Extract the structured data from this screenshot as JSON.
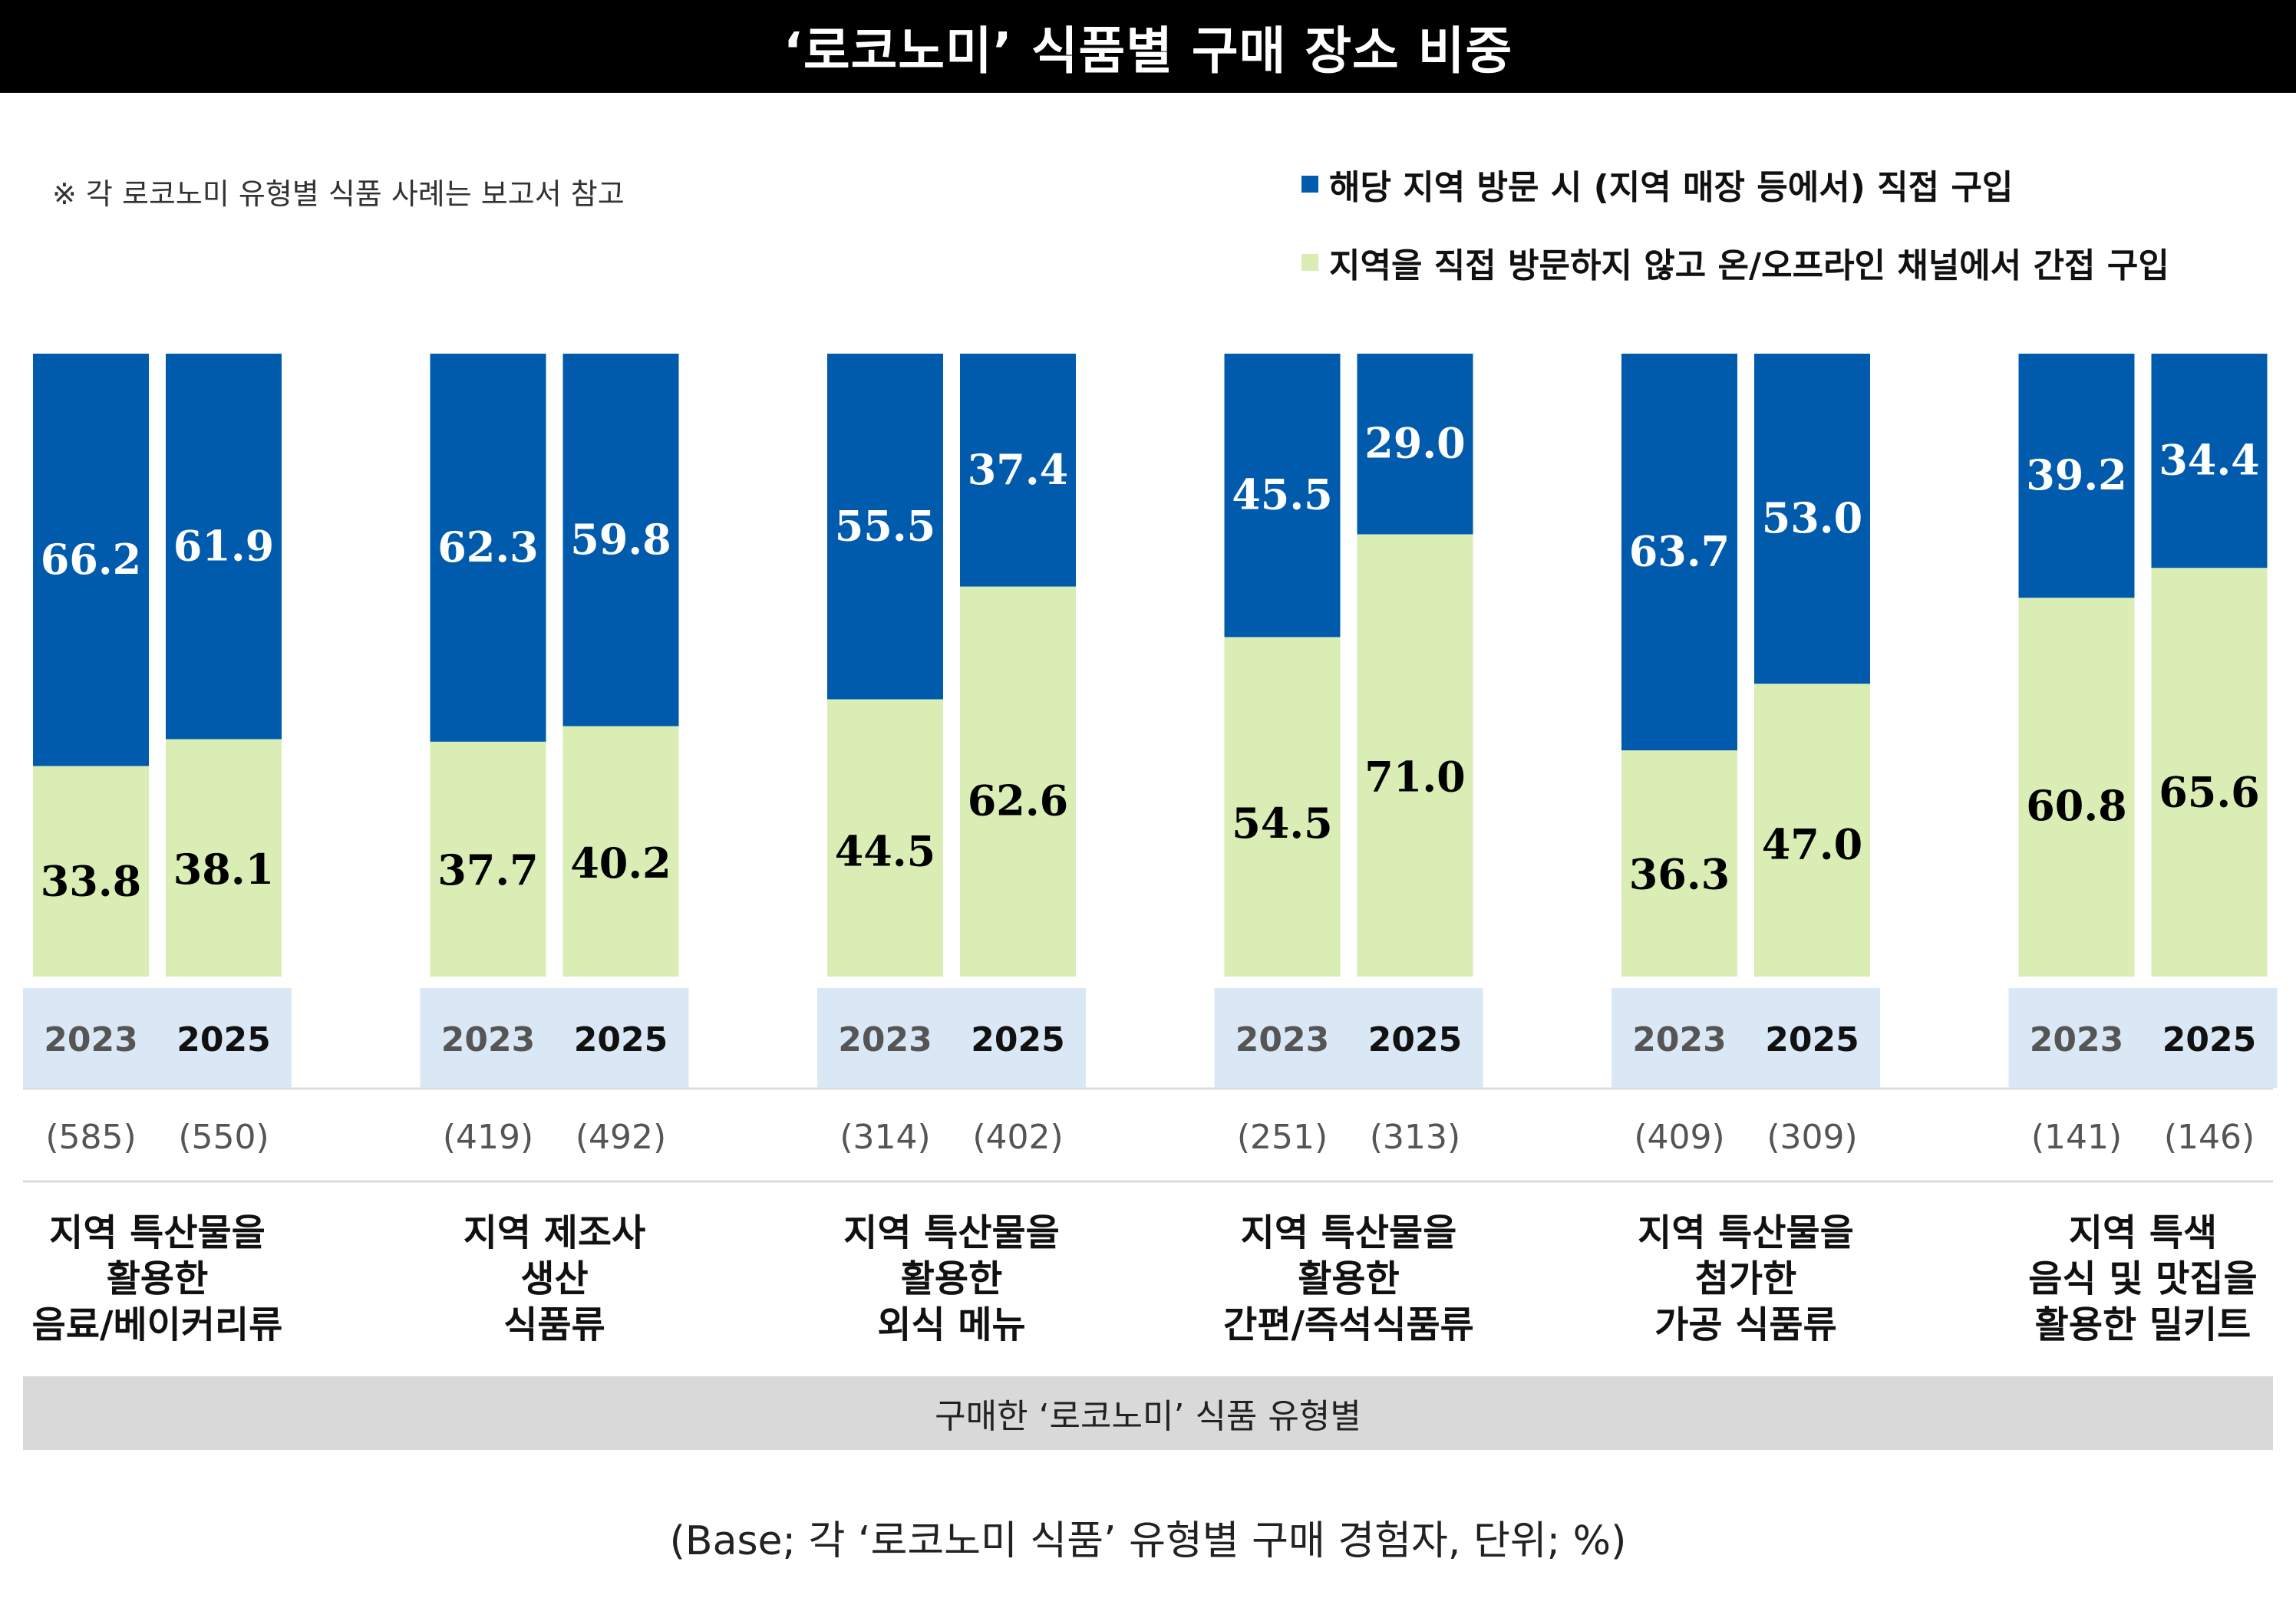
{
  "title": "‘로코노미’ 식품별 구매 장소 비중",
  "note": "※ 각 로코노미 유형별 식품 사례는 보고서 참고",
  "axis_label": "구매한 ‘로코노미’ 식품 유형별",
  "base_note": "(Base; 각 ‘로코노미 식품’ 유형별 구매 경험자, 단위; %)",
  "colors": {
    "direct": "#005bac",
    "indirect": "#d9edb4",
    "year_band": "#dae8f5",
    "axis_bar": "#d9d9d9"
  },
  "chart_data": {
    "type": "bar",
    "stacked": true,
    "percent": true,
    "series": [
      {
        "name": "해당 지역 방문 시 (지역 매장 등에서) 직접 구입",
        "color": "#005bac",
        "values": [
          66.2,
          61.9,
          62.3,
          59.8,
          55.5,
          37.4,
          45.5,
          29.0,
          63.7,
          53.0,
          39.2,
          34.4
        ]
      },
      {
        "name": "지역을 직접 방문하지 않고 온/오프라인 채널에서 간접 구입",
        "color": "#d9edb4",
        "values": [
          33.8,
          38.1,
          37.7,
          40.2,
          44.5,
          62.6,
          54.5,
          71.0,
          36.3,
          47.0,
          60.8,
          65.6
        ]
      }
    ],
    "groups": [
      {
        "label_lines": [
          "지역 특산물을",
          "활용한",
          "음료/베이커리류"
        ],
        "years": [
          "2023",
          "2025"
        ],
        "samples": [
          "(585)",
          "(550)"
        ],
        "direct": [
          66.2,
          61.9
        ],
        "indirect": [
          33.8,
          38.1
        ],
        "direct_labels": [
          "66.2",
          "61.9"
        ],
        "indirect_labels": [
          "33.8",
          "38.1"
        ]
      },
      {
        "label_lines": [
          "지역 제조사",
          "생산",
          "식품류"
        ],
        "years": [
          "2023",
          "2025"
        ],
        "samples": [
          "(419)",
          "(492)"
        ],
        "direct": [
          62.3,
          59.8
        ],
        "indirect": [
          37.7,
          40.2
        ],
        "direct_labels": [
          "62.3",
          "59.8"
        ],
        "indirect_labels": [
          "37.7",
          "40.2"
        ]
      },
      {
        "label_lines": [
          "지역 특산물을",
          "활용한",
          "외식 메뉴"
        ],
        "years": [
          "2023",
          "2025"
        ],
        "samples": [
          "(314)",
          "(402)"
        ],
        "direct": [
          55.5,
          37.4
        ],
        "indirect": [
          44.5,
          62.6
        ],
        "direct_labels": [
          "55.5",
          "37.4"
        ],
        "indirect_labels": [
          "44.5",
          "62.6"
        ]
      },
      {
        "label_lines": [
          "지역 특산물을",
          "활용한",
          "간편/즉석식품류"
        ],
        "years": [
          "2023",
          "2025"
        ],
        "samples": [
          "(251)",
          "(313)"
        ],
        "direct": [
          45.5,
          29.0
        ],
        "indirect": [
          54.5,
          71.0
        ],
        "direct_labels": [
          "45.5",
          "29.0"
        ],
        "indirect_labels": [
          "54.5",
          "71.0"
        ]
      },
      {
        "label_lines": [
          "지역 특산물을",
          "첨가한",
          "가공 식품류"
        ],
        "years": [
          "2023",
          "2025"
        ],
        "samples": [
          "(409)",
          "(309)"
        ],
        "direct": [
          63.7,
          53.0
        ],
        "indirect": [
          36.3,
          47.0
        ],
        "direct_labels": [
          "63.7",
          "53.0"
        ],
        "indirect_labels": [
          "36.3",
          "47.0"
        ]
      },
      {
        "label_lines": [
          "지역 특색",
          "음식 및 맛집을",
          "활용한 밀키트"
        ],
        "years": [
          "2023",
          "2025"
        ],
        "samples": [
          "(141)",
          "(146)"
        ],
        "direct": [
          39.2,
          34.4
        ],
        "indirect": [
          60.8,
          65.6
        ],
        "direct_labels": [
          "39.2",
          "34.4"
        ],
        "indirect_labels": [
          "60.8",
          "65.6"
        ]
      }
    ],
    "ylim": [
      0,
      100
    ],
    "legend": "top-right",
    "grid": false
  }
}
